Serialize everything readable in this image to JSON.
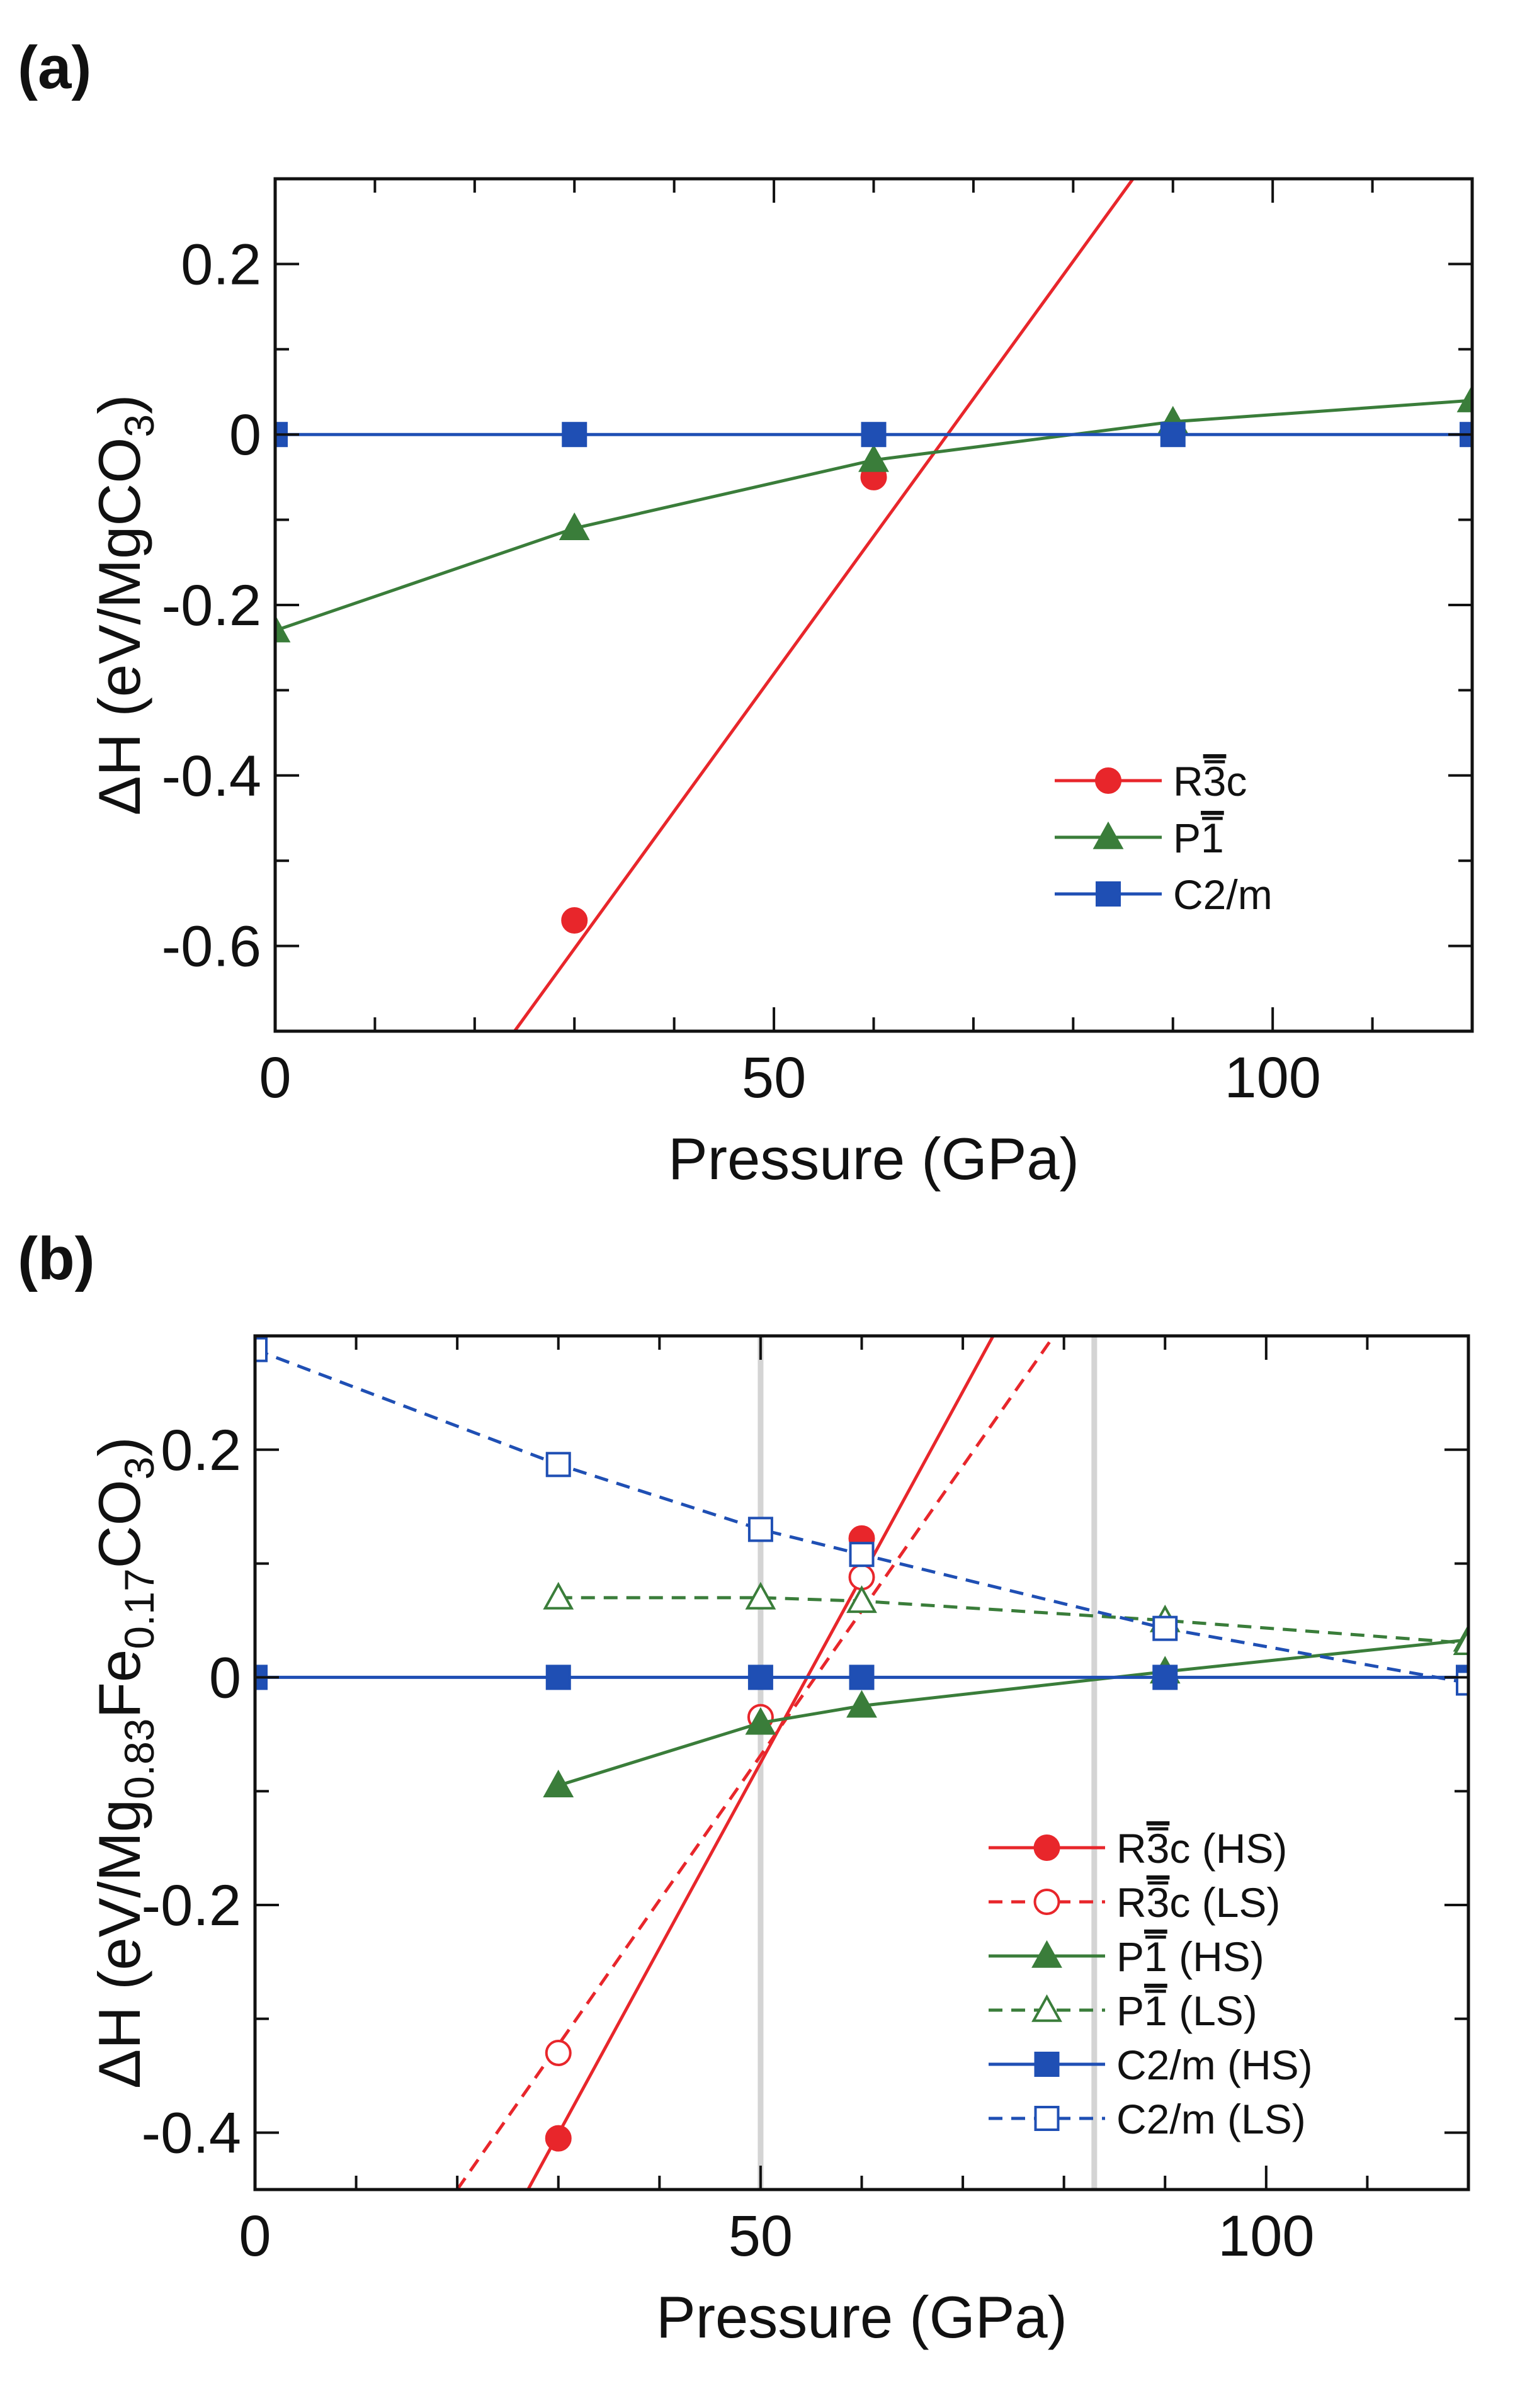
{
  "chart_data": [
    {
      "panel_label": "(a)",
      "type": "line",
      "xlabel": "Pressure (GPa)",
      "ylabel_main": "ΔH (eV/MgCO",
      "ylabel_sub": "3",
      "ylabel_end": ")",
      "xlim": [
        0,
        120
      ],
      "ylim": [
        -0.7,
        0.3
      ],
      "xticks": [
        0,
        50,
        100
      ],
      "xtick_labels": [
        "0",
        "50",
        "100"
      ],
      "yticks": [
        0.2,
        0,
        -0.2,
        -0.4,
        -0.6
      ],
      "ytick_labels": [
        "0.2",
        "0",
        "-0.2",
        "-0.4",
        "-0.6"
      ],
      "x_minor_step": 10,
      "y_minor_step": 0.1,
      "legend": "lower-right",
      "series": [
        {
          "name": "R3c",
          "name_base": "R",
          "name_bar": "3",
          "name_rest": "c",
          "color": "#e8262b",
          "marker": "circle",
          "filled": true,
          "dashed": false,
          "x": [
            30,
            60
          ],
          "y": [
            -0.57,
            -0.05
          ],
          "fit_line": [
            [
              24,
              -0.7
            ],
            [
              86,
              0.3
            ]
          ]
        },
        {
          "name": "P1",
          "name_base": "P",
          "name_bar": "1",
          "name_rest": "",
          "color": "#3a7d3a",
          "marker": "triangle",
          "filled": true,
          "dashed": false,
          "x": [
            0,
            30,
            60,
            90,
            120
          ],
          "y": [
            -0.23,
            -0.11,
            -0.03,
            0.015,
            0.04
          ]
        },
        {
          "name": "C2/m",
          "name_base": "C2/m",
          "name_bar": "",
          "name_rest": "",
          "color": "#1f4fb4",
          "marker": "square",
          "filled": true,
          "dashed": false,
          "x": [
            0,
            30,
            60,
            90,
            120
          ],
          "y": [
            0,
            0,
            0,
            0,
            0
          ]
        }
      ]
    },
    {
      "panel_label": "(b)",
      "type": "line",
      "xlabel": "Pressure (GPa)",
      "ylabel_main": "ΔH (eV/Mg",
      "ylabel_sub1": "0.83",
      "ylabel_mid": "Fe",
      "ylabel_sub2": "0.17",
      "ylabel_mid2": "CO",
      "ylabel_sub3": "3",
      "ylabel_end": ")",
      "xlim": [
        0,
        120
      ],
      "ylim": [
        -0.45,
        0.3
      ],
      "xticks": [
        0,
        50,
        100
      ],
      "xtick_labels": [
        "0",
        "50",
        "100"
      ],
      "yticks": [
        0.2,
        0,
        -0.2,
        -0.4
      ],
      "ytick_labels": [
        "0.2",
        "0",
        "-0.2",
        "-0.4"
      ],
      "x_minor_step": 10,
      "y_minor_step": 0.1,
      "vertical_lines": [
        50,
        83
      ],
      "legend": "lower-right",
      "series": [
        {
          "name": "R3c (HS)",
          "name_base": "R",
          "name_bar": "3",
          "name_rest": "c (HS)",
          "color": "#e8262b",
          "marker": "circle",
          "filled": true,
          "dashed": false,
          "x": [
            30,
            60
          ],
          "y": [
            -0.405,
            0.122
          ],
          "fit_line": [
            [
              27,
              -0.45
            ],
            [
              73,
              0.3
            ]
          ]
        },
        {
          "name": "R3c (LS)",
          "name_base": "R",
          "name_bar": "3",
          "name_rest": "c (LS)",
          "color": "#e8262b",
          "marker": "circle",
          "filled": false,
          "dashed": true,
          "x": [
            30,
            50,
            60
          ],
          "y": [
            -0.33,
            -0.035,
            0.088
          ],
          "fit_line": [
            [
              20,
              -0.45
            ],
            [
              79,
              0.3
            ]
          ]
        },
        {
          "name": "P1 (HS)",
          "name_base": "P",
          "name_bar": "1",
          "name_rest": " (HS)",
          "color": "#3a7d3a",
          "marker": "triangle",
          "filled": true,
          "dashed": false,
          "x": [
            30,
            50,
            60,
            90,
            120
          ],
          "y": [
            -0.095,
            -0.04,
            -0.025,
            0.005,
            0.033
          ]
        },
        {
          "name": "P1 (LS)",
          "name_base": "P",
          "name_bar": "1",
          "name_rest": " (LS)",
          "color": "#3a7d3a",
          "marker": "triangle",
          "filled": false,
          "dashed": true,
          "x": [
            30,
            50,
            60,
            90,
            120
          ],
          "y": [
            0.07,
            0.07,
            0.067,
            0.05,
            0.03
          ]
        },
        {
          "name": "C2/m (HS)",
          "name_base": "C2/m (HS)",
          "name_bar": "",
          "name_rest": "",
          "color": "#1f4fb4",
          "marker": "square",
          "filled": true,
          "dashed": false,
          "x": [
            0,
            30,
            50,
            60,
            90,
            120
          ],
          "y": [
            0,
            0,
            0,
            0,
            0,
            0
          ]
        },
        {
          "name": "C2/m (LS)",
          "name_base": "C2/m (LS)",
          "name_bar": "",
          "name_rest": "",
          "color": "#1f4fb4",
          "marker": "square",
          "filled": false,
          "dashed": true,
          "x": [
            0,
            30,
            50,
            60,
            90,
            120
          ],
          "y": [
            0.288,
            0.187,
            0.13,
            0.108,
            0.043,
            -0.005
          ]
        }
      ]
    }
  ]
}
